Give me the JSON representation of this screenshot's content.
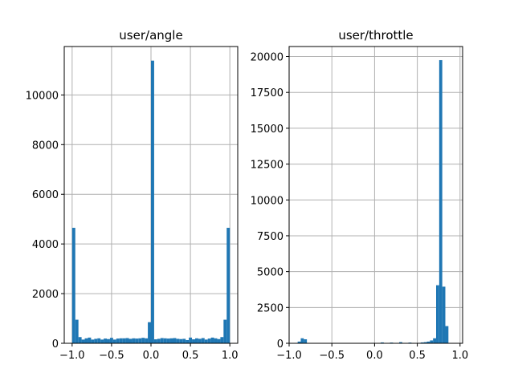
{
  "chart_data": [
    {
      "type": "bar",
      "title": "user/angle",
      "xlabel": "",
      "ylabel": "",
      "xlim": [
        -1.1,
        1.1
      ],
      "ylim": [
        0,
        11950
      ],
      "xticks": [
        -1.0,
        -0.5,
        0.0,
        0.5,
        1.0
      ],
      "xtick_labels": [
        "−1.0",
        "−0.5",
        "0.0",
        "0.5",
        "1.0"
      ],
      "yticks": [
        0,
        2000,
        4000,
        6000,
        8000,
        10000
      ],
      "ytick_labels": [
        "0",
        "2000",
        "4000",
        "6000",
        "8000",
        "10000"
      ],
      "grid": true,
      "color": "#1f77b4",
      "bin_start": -1.0,
      "bin_width": 0.04,
      "values": [
        4650,
        950,
        250,
        150,
        200,
        230,
        150,
        180,
        200,
        150,
        190,
        170,
        220,
        150,
        190,
        200,
        200,
        210,
        180,
        200,
        190,
        200,
        220,
        200,
        850,
        11380,
        160,
        180,
        210,
        200,
        190,
        200,
        210,
        180,
        170,
        180,
        130,
        230,
        160,
        200,
        180,
        210,
        150,
        190,
        230,
        200,
        170,
        250,
        950,
        4650
      ]
    },
    {
      "type": "bar",
      "title": "user/throttle",
      "xlabel": "",
      "ylabel": "",
      "xlim": [
        -1.0,
        1.03
      ],
      "ylim": [
        0,
        20700
      ],
      "xticks": [
        -1.0,
        -0.5,
        0.0,
        0.5,
        1.0
      ],
      "xtick_labels": [
        "−1.0",
        "−0.5",
        "0.0",
        "0.5",
        "1.0"
      ],
      "yticks": [
        0,
        2500,
        5000,
        7500,
        10000,
        12500,
        15000,
        17500,
        20000
      ],
      "ytick_labels": [
        "0",
        "2500",
        "5000",
        "7500",
        "10000",
        "12500",
        "15000",
        "17500",
        "20000"
      ],
      "grid": true,
      "color": "#1f77b4",
      "bin_start": -0.9,
      "bin_width": 0.036,
      "values": [
        120,
        350,
        280,
        0,
        0,
        0,
        0,
        0,
        0,
        0,
        0,
        0,
        0,
        0,
        0,
        0,
        0,
        0,
        0,
        0,
        0,
        0,
        0,
        0,
        30,
        0,
        0,
        60,
        0,
        0,
        50,
        0,
        0,
        80,
        0,
        0,
        50,
        0,
        0,
        30,
        60,
        80,
        120,
        200,
        350,
        4050,
        19750,
        3950,
        1200,
        0
      ]
    }
  ]
}
